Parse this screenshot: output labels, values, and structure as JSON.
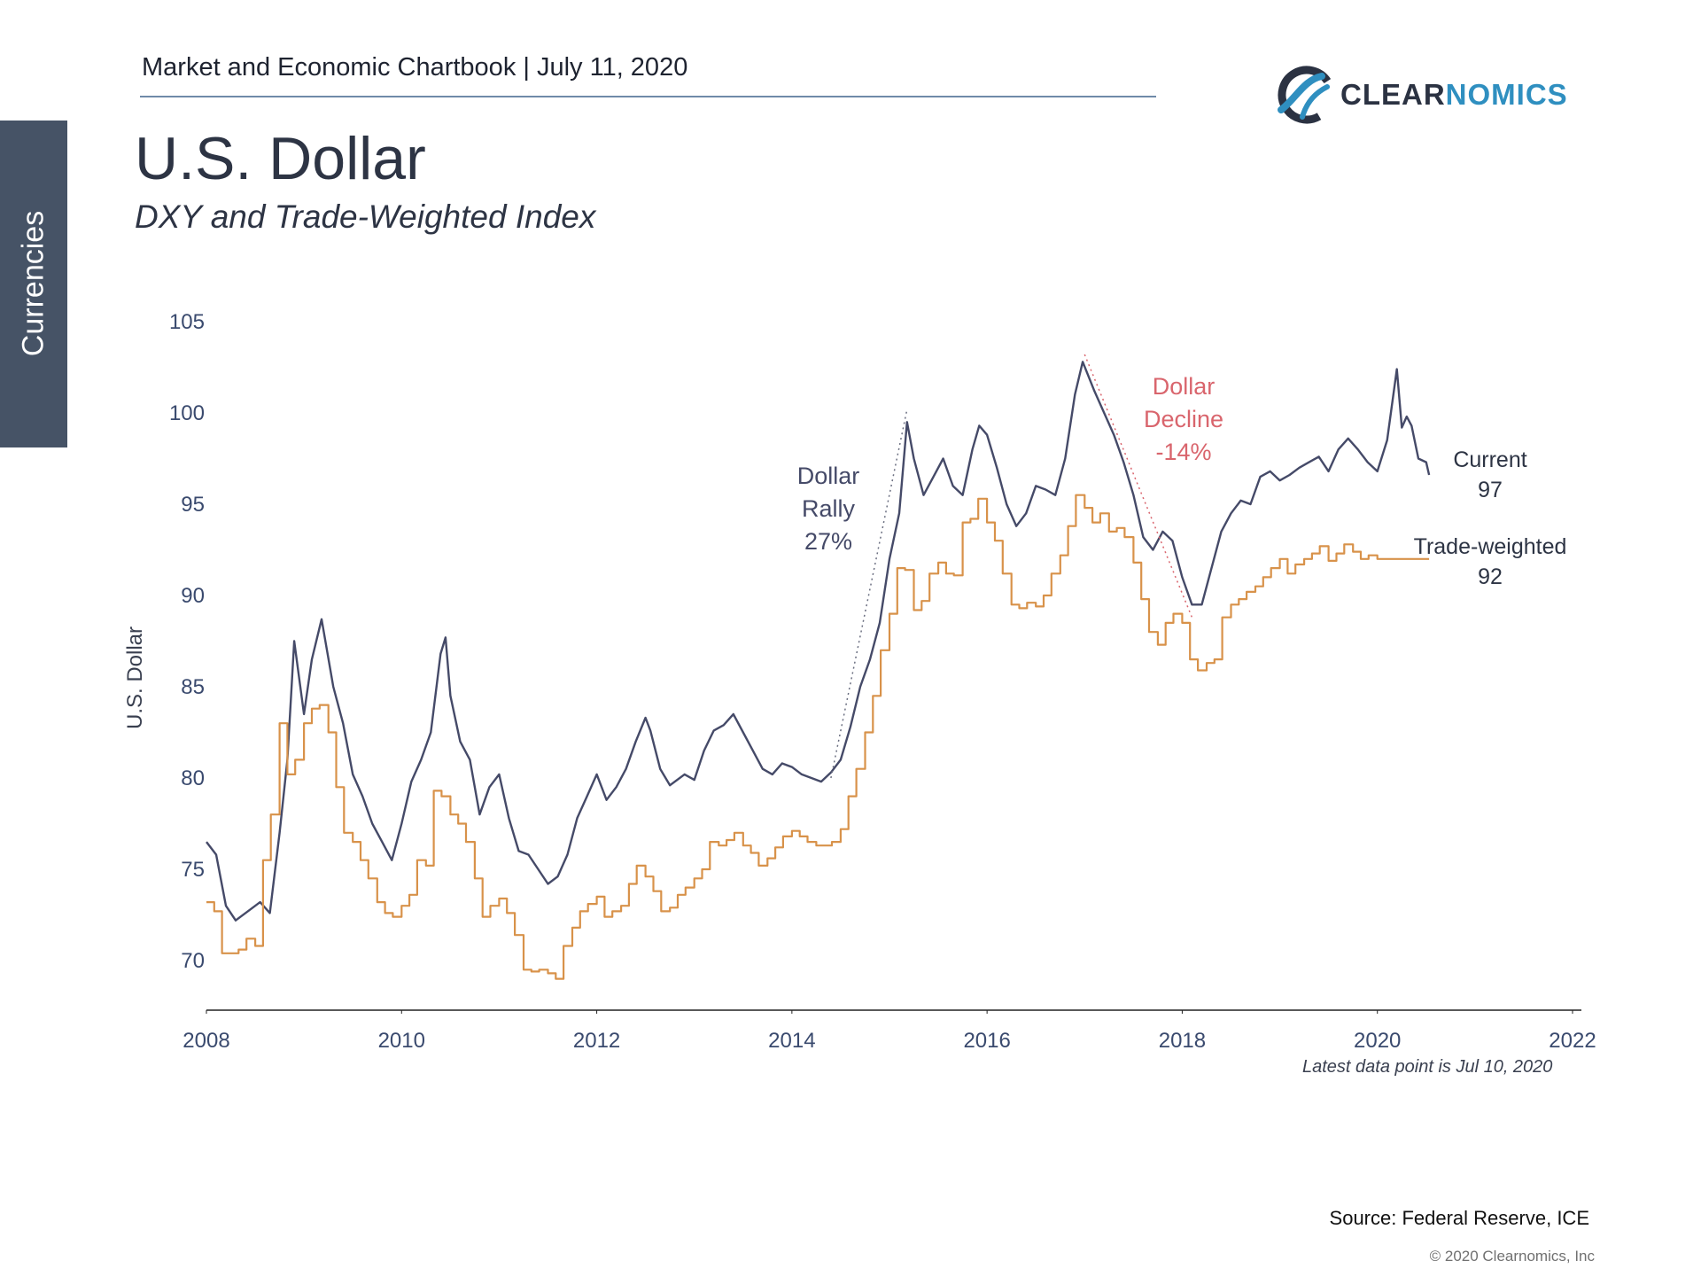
{
  "header": {
    "chartbook": "Market and Economic Chartbook | July 11, 2020",
    "logo_part1": "CLEAR",
    "logo_part2": "NOMICS",
    "title": "U.S. Dollar",
    "subtitle": "DXY and Trade-Weighted Index"
  },
  "sidebar": {
    "tab": "Currencies"
  },
  "footer": {
    "latest": "Latest data point is Jul 10, 2020",
    "source": "Source: Federal Reserve, ICE",
    "copyright": "© 2020 Clearnomics, Inc"
  },
  "colors": {
    "dxy": "#454a68",
    "trade_weighted": "#d8924a",
    "decline_annotation": "#d9656d",
    "axis_text": "#3a4a6e",
    "ylabel": "#3a4050"
  },
  "chart_data": {
    "type": "line",
    "title": "DXY and Trade-Weighted Index",
    "xlabel": "",
    "ylabel": "U.S. Dollar",
    "xlim": [
      2008,
      2022
    ],
    "ylim": [
      67,
      105
    ],
    "xticks": [
      2008,
      2010,
      2012,
      2014,
      2016,
      2018,
      2020,
      2022
    ],
    "yticks": [
      70,
      75,
      80,
      85,
      90,
      95,
      100,
      105
    ],
    "grid": false,
    "series": [
      {
        "name": "DXY",
        "style": "line",
        "points": [
          [
            2008.0,
            76.5
          ],
          [
            2008.1,
            75.8
          ],
          [
            2008.2,
            73.0
          ],
          [
            2008.3,
            72.2
          ],
          [
            2008.45,
            72.8
          ],
          [
            2008.55,
            73.2
          ],
          [
            2008.65,
            72.6
          ],
          [
            2008.75,
            77.0
          ],
          [
            2008.83,
            81.0
          ],
          [
            2008.9,
            87.5
          ],
          [
            2009.0,
            83.5
          ],
          [
            2009.08,
            86.5
          ],
          [
            2009.18,
            88.7
          ],
          [
            2009.3,
            85.0
          ],
          [
            2009.4,
            83.0
          ],
          [
            2009.5,
            80.2
          ],
          [
            2009.6,
            79.0
          ],
          [
            2009.7,
            77.5
          ],
          [
            2009.8,
            76.5
          ],
          [
            2009.9,
            75.5
          ],
          [
            2010.0,
            77.5
          ],
          [
            2010.1,
            79.8
          ],
          [
            2010.2,
            81.0
          ],
          [
            2010.3,
            82.5
          ],
          [
            2010.4,
            86.8
          ],
          [
            2010.45,
            87.7
          ],
          [
            2010.5,
            84.5
          ],
          [
            2010.6,
            82.0
          ],
          [
            2010.7,
            81.0
          ],
          [
            2010.8,
            78.0
          ],
          [
            2010.9,
            79.5
          ],
          [
            2011.0,
            80.2
          ],
          [
            2011.1,
            77.8
          ],
          [
            2011.2,
            76.0
          ],
          [
            2011.3,
            75.8
          ],
          [
            2011.4,
            75.0
          ],
          [
            2011.5,
            74.2
          ],
          [
            2011.6,
            74.6
          ],
          [
            2011.7,
            75.8
          ],
          [
            2011.8,
            77.8
          ],
          [
            2011.9,
            79.0
          ],
          [
            2012.0,
            80.2
          ],
          [
            2012.1,
            78.8
          ],
          [
            2012.2,
            79.5
          ],
          [
            2012.3,
            80.5
          ],
          [
            2012.4,
            82.0
          ],
          [
            2012.5,
            83.3
          ],
          [
            2012.55,
            82.6
          ],
          [
            2012.65,
            80.5
          ],
          [
            2012.75,
            79.6
          ],
          [
            2012.9,
            80.2
          ],
          [
            2013.0,
            79.9
          ],
          [
            2013.1,
            81.5
          ],
          [
            2013.2,
            82.6
          ],
          [
            2013.3,
            82.9
          ],
          [
            2013.4,
            83.5
          ],
          [
            2013.5,
            82.5
          ],
          [
            2013.6,
            81.5
          ],
          [
            2013.7,
            80.5
          ],
          [
            2013.8,
            80.2
          ],
          [
            2013.9,
            80.8
          ],
          [
            2014.0,
            80.6
          ],
          [
            2014.1,
            80.2
          ],
          [
            2014.2,
            80.0
          ],
          [
            2014.3,
            79.8
          ],
          [
            2014.4,
            80.3
          ],
          [
            2014.5,
            81.0
          ],
          [
            2014.6,
            82.8
          ],
          [
            2014.7,
            85.0
          ],
          [
            2014.8,
            86.5
          ],
          [
            2014.9,
            88.5
          ],
          [
            2015.0,
            92.0
          ],
          [
            2015.1,
            94.5
          ],
          [
            2015.18,
            99.5
          ],
          [
            2015.25,
            97.5
          ],
          [
            2015.35,
            95.5
          ],
          [
            2015.45,
            96.5
          ],
          [
            2015.55,
            97.5
          ],
          [
            2015.65,
            96.0
          ],
          [
            2015.75,
            95.5
          ],
          [
            2015.85,
            98.0
          ],
          [
            2015.92,
            99.3
          ],
          [
            2016.0,
            98.8
          ],
          [
            2016.1,
            97.0
          ],
          [
            2016.2,
            95.0
          ],
          [
            2016.3,
            93.8
          ],
          [
            2016.4,
            94.5
          ],
          [
            2016.5,
            96.0
          ],
          [
            2016.6,
            95.8
          ],
          [
            2016.7,
            95.5
          ],
          [
            2016.8,
            97.5
          ],
          [
            2016.9,
            101.0
          ],
          [
            2016.98,
            102.8
          ],
          [
            2017.1,
            101.2
          ],
          [
            2017.2,
            100.0
          ],
          [
            2017.3,
            98.8
          ],
          [
            2017.4,
            97.3
          ],
          [
            2017.5,
            95.5
          ],
          [
            2017.6,
            93.2
          ],
          [
            2017.7,
            92.5
          ],
          [
            2017.8,
            93.5
          ],
          [
            2017.9,
            93.0
          ],
          [
            2018.0,
            91.0
          ],
          [
            2018.1,
            89.5
          ],
          [
            2018.2,
            89.5
          ],
          [
            2018.3,
            91.5
          ],
          [
            2018.4,
            93.5
          ],
          [
            2018.5,
            94.5
          ],
          [
            2018.6,
            95.2
          ],
          [
            2018.7,
            95.0
          ],
          [
            2018.8,
            96.5
          ],
          [
            2018.9,
            96.8
          ],
          [
            2019.0,
            96.3
          ],
          [
            2019.1,
            96.6
          ],
          [
            2019.2,
            97.0
          ],
          [
            2019.3,
            97.3
          ],
          [
            2019.4,
            97.6
          ],
          [
            2019.5,
            96.8
          ],
          [
            2019.6,
            98.0
          ],
          [
            2019.7,
            98.6
          ],
          [
            2019.8,
            98.0
          ],
          [
            2019.9,
            97.3
          ],
          [
            2020.0,
            96.8
          ],
          [
            2020.1,
            98.5
          ],
          [
            2020.2,
            102.4
          ],
          [
            2020.25,
            99.2
          ],
          [
            2020.3,
            99.8
          ],
          [
            2020.35,
            99.3
          ],
          [
            2020.42,
            97.5
          ],
          [
            2020.5,
            97.3
          ],
          [
            2020.53,
            96.6
          ]
        ]
      },
      {
        "name": "Trade-weighted",
        "style": "step",
        "points": [
          [
            2008.0,
            73.2
          ],
          [
            2008.08,
            72.7
          ],
          [
            2008.16,
            70.4
          ],
          [
            2008.33,
            70.6
          ],
          [
            2008.41,
            71.2
          ],
          [
            2008.5,
            70.8
          ],
          [
            2008.58,
            75.5
          ],
          [
            2008.66,
            78.0
          ],
          [
            2008.75,
            83.0
          ],
          [
            2008.83,
            80.2
          ],
          [
            2008.91,
            81.0
          ],
          [
            2009.0,
            83.0
          ],
          [
            2009.08,
            83.8
          ],
          [
            2009.16,
            84.0
          ],
          [
            2009.25,
            82.5
          ],
          [
            2009.33,
            79.5
          ],
          [
            2009.41,
            77.0
          ],
          [
            2009.5,
            76.5
          ],
          [
            2009.58,
            75.5
          ],
          [
            2009.66,
            74.5
          ],
          [
            2009.75,
            73.2
          ],
          [
            2009.83,
            72.6
          ],
          [
            2009.91,
            72.4
          ],
          [
            2010.0,
            73.0
          ],
          [
            2010.08,
            73.6
          ],
          [
            2010.16,
            75.5
          ],
          [
            2010.25,
            75.2
          ],
          [
            2010.33,
            79.3
          ],
          [
            2010.41,
            79.0
          ],
          [
            2010.5,
            78.0
          ],
          [
            2010.58,
            77.5
          ],
          [
            2010.66,
            76.5
          ],
          [
            2010.75,
            74.5
          ],
          [
            2010.83,
            72.4
          ],
          [
            2010.91,
            73.0
          ],
          [
            2011.0,
            73.4
          ],
          [
            2011.08,
            72.6
          ],
          [
            2011.16,
            71.4
          ],
          [
            2011.25,
            69.5
          ],
          [
            2011.33,
            69.4
          ],
          [
            2011.41,
            69.5
          ],
          [
            2011.5,
            69.3
          ],
          [
            2011.58,
            69.0
          ],
          [
            2011.66,
            70.8
          ],
          [
            2011.75,
            71.8
          ],
          [
            2011.83,
            72.7
          ],
          [
            2011.91,
            73.1
          ],
          [
            2012.0,
            73.5
          ],
          [
            2012.08,
            72.4
          ],
          [
            2012.16,
            72.7
          ],
          [
            2012.25,
            73.0
          ],
          [
            2012.33,
            74.2
          ],
          [
            2012.41,
            75.2
          ],
          [
            2012.5,
            74.6
          ],
          [
            2012.58,
            73.8
          ],
          [
            2012.66,
            72.7
          ],
          [
            2012.75,
            72.9
          ],
          [
            2012.83,
            73.6
          ],
          [
            2012.91,
            74.0
          ],
          [
            2013.0,
            74.5
          ],
          [
            2013.08,
            75.0
          ],
          [
            2013.16,
            76.5
          ],
          [
            2013.25,
            76.3
          ],
          [
            2013.33,
            76.6
          ],
          [
            2013.41,
            77.0
          ],
          [
            2013.5,
            76.3
          ],
          [
            2013.58,
            75.9
          ],
          [
            2013.66,
            75.2
          ],
          [
            2013.75,
            75.6
          ],
          [
            2013.83,
            76.2
          ],
          [
            2013.91,
            76.8
          ],
          [
            2014.0,
            77.1
          ],
          [
            2014.08,
            76.8
          ],
          [
            2014.16,
            76.5
          ],
          [
            2014.25,
            76.3
          ],
          [
            2014.33,
            76.3
          ],
          [
            2014.41,
            76.5
          ],
          [
            2014.5,
            77.2
          ],
          [
            2014.58,
            79.0
          ],
          [
            2014.66,
            80.5
          ],
          [
            2014.75,
            82.5
          ],
          [
            2014.83,
            84.5
          ],
          [
            2014.91,
            87.0
          ],
          [
            2015.0,
            89.0
          ],
          [
            2015.08,
            91.5
          ],
          [
            2015.16,
            91.4
          ],
          [
            2015.25,
            89.2
          ],
          [
            2015.33,
            89.7
          ],
          [
            2015.41,
            91.2
          ],
          [
            2015.5,
            91.8
          ],
          [
            2015.58,
            91.2
          ],
          [
            2015.66,
            91.1
          ],
          [
            2015.75,
            94.0
          ],
          [
            2015.83,
            94.2
          ],
          [
            2015.91,
            95.3
          ],
          [
            2016.0,
            94.0
          ],
          [
            2016.08,
            93.0
          ],
          [
            2016.16,
            91.2
          ],
          [
            2016.25,
            89.5
          ],
          [
            2016.33,
            89.3
          ],
          [
            2016.41,
            89.6
          ],
          [
            2016.5,
            89.4
          ],
          [
            2016.58,
            90.0
          ],
          [
            2016.66,
            91.2
          ],
          [
            2016.75,
            92.2
          ],
          [
            2016.83,
            93.8
          ],
          [
            2016.91,
            95.5
          ],
          [
            2017.0,
            94.8
          ],
          [
            2017.08,
            94.0
          ],
          [
            2017.16,
            94.5
          ],
          [
            2017.25,
            93.5
          ],
          [
            2017.33,
            93.7
          ],
          [
            2017.41,
            93.2
          ],
          [
            2017.5,
            91.8
          ],
          [
            2017.58,
            89.8
          ],
          [
            2017.66,
            88.0
          ],
          [
            2017.75,
            87.3
          ],
          [
            2017.83,
            88.5
          ],
          [
            2017.91,
            89.0
          ],
          [
            2018.0,
            88.5
          ],
          [
            2018.08,
            86.5
          ],
          [
            2018.16,
            85.9
          ],
          [
            2018.25,
            86.3
          ],
          [
            2018.33,
            86.5
          ],
          [
            2018.41,
            88.8
          ],
          [
            2018.5,
            89.5
          ],
          [
            2018.58,
            89.8
          ],
          [
            2018.66,
            90.2
          ],
          [
            2018.75,
            90.5
          ],
          [
            2018.83,
            91.0
          ],
          [
            2018.91,
            91.5
          ],
          [
            2019.0,
            92.0
          ],
          [
            2019.08,
            91.2
          ],
          [
            2019.16,
            91.7
          ],
          [
            2019.25,
            92.0
          ],
          [
            2019.33,
            92.3
          ],
          [
            2019.41,
            92.7
          ],
          [
            2019.5,
            91.9
          ],
          [
            2019.58,
            92.3
          ],
          [
            2019.66,
            92.8
          ],
          [
            2019.75,
            92.4
          ],
          [
            2019.83,
            92.0
          ],
          [
            2019.91,
            92.2
          ],
          [
            2020.0,
            92.0
          ],
          [
            2020.53,
            92.0
          ]
        ]
      }
    ],
    "annotations": [
      {
        "name": "rally",
        "lines": [
          "Dollar",
          "Rally",
          "27%"
        ],
        "x": 2014.4,
        "y": 80.0,
        "x2": 2015.18,
        "y2": 100.2
      },
      {
        "name": "decline",
        "lines": [
          "Dollar",
          "Decline",
          "-14%"
        ],
        "x": 2017.0,
        "y": 103.2,
        "x2": 2018.1,
        "y2": 88.8
      },
      {
        "name": "current",
        "lines": [
          "Current",
          "97"
        ]
      },
      {
        "name": "trade-weighted",
        "lines": [
          "Trade-weighted",
          "92"
        ]
      }
    ]
  }
}
